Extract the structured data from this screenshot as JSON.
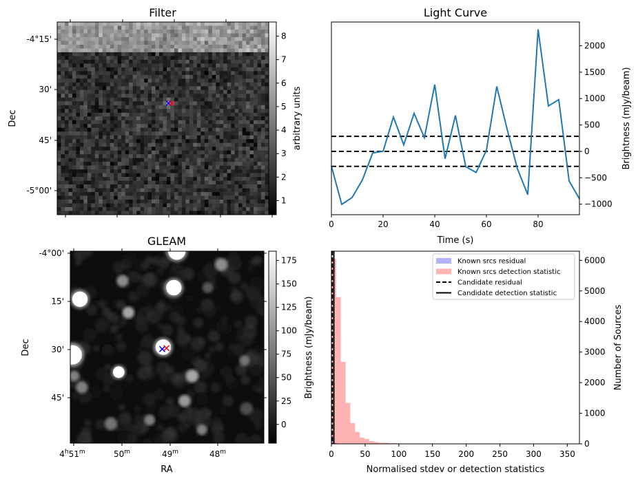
{
  "chart_data": [
    {
      "id": "filter",
      "type": "heatmap",
      "title": "Filter",
      "xlabel": "",
      "ylabel": "Dec",
      "y_ticks": [
        "-4°15'",
        "30'",
        "45'",
        "-5°00'"
      ],
      "x_ticks": [
        "",
        "",
        "",
        ""
      ],
      "colormap": "gray",
      "colorbar": {
        "label": "arbitrary units",
        "range": [
          0.4,
          8.6
        ],
        "ticks": [
          1,
          2,
          3,
          4,
          5,
          6,
          7,
          8
        ]
      },
      "grid": {
        "cols": 56,
        "rows": 51,
        "bright_band_rows": 8,
        "bright_band_mean": 5.2,
        "background_mean": 2.0,
        "seed": 7
      },
      "markers": [
        {
          "label": "blue-cross",
          "color": "#0000ff",
          "col": 29,
          "row": 21
        },
        {
          "label": "red-cross",
          "color": "#ff0000",
          "col": 30,
          "row": 21
        }
      ],
      "source_peak": {
        "col": 29,
        "row": 21,
        "value": 5.5
      }
    },
    {
      "id": "light_curve",
      "type": "line",
      "title": "Light Curve",
      "xlabel": "Time (s)",
      "ylabel": "Brightness (mJy/beam)",
      "xlim": [
        0,
        96
      ],
      "ylim": [
        -1200,
        2450
      ],
      "x_ticks": [
        0,
        20,
        40,
        60,
        80
      ],
      "y_ticks": [
        -1000,
        -500,
        0,
        500,
        1000,
        1500,
        2000
      ],
      "y_tick_labels": [
        "−1000",
        "−500",
        "0",
        "500",
        "1000",
        "1500",
        "2000"
      ],
      "series": [
        {
          "name": "light curve",
          "color": "#1f77b4",
          "x": [
            0,
            4,
            8,
            12,
            16,
            20,
            24,
            28,
            32,
            36,
            40,
            44,
            48,
            52,
            56,
            60,
            64,
            68,
            72,
            76,
            80,
            84,
            88,
            92,
            96
          ],
          "y": [
            -280,
            -1005,
            -875,
            -540,
            -30,
            0,
            650,
            125,
            720,
            260,
            1265,
            -140,
            680,
            -290,
            -400,
            20,
            1230,
            420,
            -330,
            -820,
            2310,
            860,
            980,
            -560,
            -900
          ]
        }
      ],
      "hlines": [
        {
          "y": 285,
          "style": "dashed",
          "color": "#000000"
        },
        {
          "y": 0,
          "style": "dashed",
          "color": "#000000"
        },
        {
          "y": -285,
          "style": "dashed",
          "color": "#000000"
        }
      ]
    },
    {
      "id": "gleam",
      "type": "heatmap",
      "title": "GLEAM",
      "xlabel": "RA",
      "ylabel": "Dec",
      "x_ticks": [
        "4h51m",
        "50m",
        "49m",
        "48m"
      ],
      "x_tick_parts": [
        {
          "a": "4",
          "sa": "h",
          "b": "51",
          "sb": "m"
        },
        {
          "a": "",
          "sa": "",
          "b": "50",
          "sb": "m"
        },
        {
          "a": "",
          "sa": "",
          "b": "49",
          "sb": "m"
        },
        {
          "a": "",
          "sa": "",
          "b": "48",
          "sb": "m"
        }
      ],
      "y_ticks": [
        "-4°00'",
        "15'",
        "30'",
        "45'"
      ],
      "colormap": "gray",
      "colorbar": {
        "label": "Brightness (mJy/beam)",
        "range": [
          -20,
          185
        ],
        "ticks": [
          0,
          25,
          50,
          75,
          100,
          125,
          150,
          175
        ]
      },
      "sources": [
        {
          "u": 0.55,
          "v": 0.0,
          "r": 0.045,
          "v_b": 1.0
        },
        {
          "u": 0.78,
          "v": 0.07,
          "r": 0.03,
          "v_b": 0.45
        },
        {
          "u": 0.27,
          "v": 0.155,
          "r": 0.028,
          "v_b": 0.45
        },
        {
          "u": 0.535,
          "v": 0.19,
          "r": 0.04,
          "v_b": 1.0
        },
        {
          "u": 0.71,
          "v": 0.19,
          "r": 0.025,
          "v_b": 0.25
        },
        {
          "u": 0.05,
          "v": 0.25,
          "r": 0.04,
          "v_b": 1.0
        },
        {
          "u": 0.3,
          "v": 0.32,
          "r": 0.028,
          "v_b": 0.55
        },
        {
          "u": 0.48,
          "v": 0.5,
          "r": 0.04,
          "v_b": 1.0
        },
        {
          "u": 0.01,
          "v": 0.54,
          "r": 0.05,
          "v_b": 1.0
        },
        {
          "u": 0.25,
          "v": 0.63,
          "r": 0.03,
          "v_b": 1.0
        },
        {
          "u": 0.02,
          "v": 0.65,
          "r": 0.025,
          "v_b": 0.4
        },
        {
          "u": 0.06,
          "v": 0.71,
          "r": 0.028,
          "v_b": 0.4
        },
        {
          "u": 0.63,
          "v": 0.65,
          "r": 0.03,
          "v_b": 0.55
        },
        {
          "u": 0.9,
          "v": 0.57,
          "r": 0.025,
          "v_b": 0.35
        },
        {
          "u": 0.59,
          "v": 0.78,
          "r": 0.028,
          "v_b": 0.5
        },
        {
          "u": 0.41,
          "v": 0.88,
          "r": 0.025,
          "v_b": 0.4
        },
        {
          "u": 0.21,
          "v": 0.9,
          "r": 0.03,
          "v_b": 0.35
        },
        {
          "u": 0.68,
          "v": 0.93,
          "r": 0.025,
          "v_b": 0.4
        },
        {
          "u": 0.91,
          "v": 0.82,
          "r": 0.03,
          "v_b": 0.2
        }
      ],
      "markers": [
        {
          "label": "blue-cross",
          "color": "#0000ff",
          "u": 0.475,
          "v": 0.51
        },
        {
          "label": "red-cross",
          "color": "#ff0000",
          "u": 0.497,
          "v": 0.505
        }
      ]
    },
    {
      "id": "histogram",
      "type": "bar",
      "title": "",
      "xlabel": "Normalised stdev or detection statistics",
      "ylabel": "Number of Sources",
      "xlim": [
        0,
        368
      ],
      "ylim": [
        0,
        6300
      ],
      "x_ticks": [
        0,
        50,
        100,
        150,
        200,
        250,
        300,
        350
      ],
      "y_ticks": [
        0,
        1000,
        2000,
        3000,
        4000,
        5000,
        6000
      ],
      "legend": {
        "placement": "top-right",
        "entries": [
          {
            "label": "Known srcs residual",
            "kind": "patch",
            "color": "#b3b3ff"
          },
          {
            "label": "Known srcs detection statistic",
            "kind": "patch",
            "color": "#ffb3b3"
          },
          {
            "label": "Candidate residual",
            "kind": "dashed",
            "color": "#000000"
          },
          {
            "label": "Candidate detection statistic",
            "kind": "solid",
            "color": "#000000"
          }
        ]
      },
      "series": [
        {
          "name": "Known srcs detection statistic",
          "color": "#ff0000",
          "alpha": 0.3,
          "bins": [
            [
              0,
              7,
              6050
            ],
            [
              7,
              14,
              4800
            ],
            [
              14,
              21,
              2680
            ],
            [
              21,
              28,
              1340
            ],
            [
              28,
              35,
              680
            ],
            [
              35,
              42,
              390
            ],
            [
              42,
              49,
              200
            ],
            [
              49,
              56,
              160
            ],
            [
              56,
              63,
              90
            ],
            [
              63,
              70,
              60
            ],
            [
              70,
              84,
              35
            ],
            [
              84,
              98,
              20
            ],
            [
              98,
              168,
              12
            ],
            [
              175,
              182,
              12
            ],
            [
              203,
              210,
              10
            ],
            [
              343,
              350,
              10
            ]
          ]
        },
        {
          "name": "Known srcs residual",
          "color": "#0000ff",
          "alpha": 0.3,
          "bins": [
            [
              0,
              1,
              150
            ],
            [
              1,
              2,
              260
            ],
            [
              2,
              3,
              120
            ],
            [
              3,
              5,
              60
            ],
            [
              5,
              8,
              30
            ],
            [
              8,
              14,
              12
            ]
          ]
        }
      ],
      "vlines": [
        {
          "name": "Candidate residual",
          "x": 1.2,
          "style": "dashed"
        },
        {
          "name": "Candidate detection statistic",
          "x": 3.6,
          "style": "solid"
        }
      ]
    }
  ]
}
